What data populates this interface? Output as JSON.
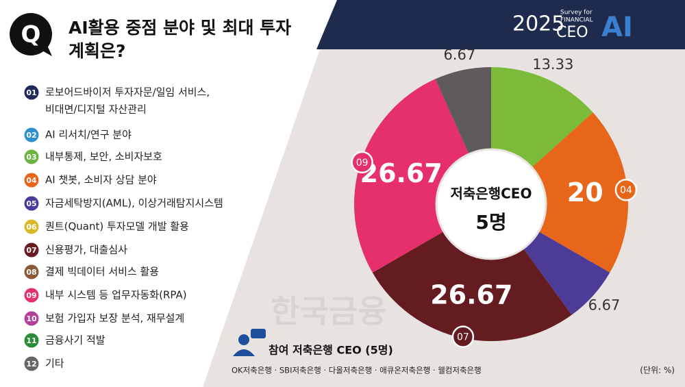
{
  "header": {
    "q_icon": "Q",
    "title": [
      "AI활용 중점 분야 및 최대 투자",
      "계획은?"
    ]
  },
  "logo": {
    "year": "2025",
    "survey": "Survey for",
    "financial": "FINANCIAL",
    "ceo": "CEO",
    "ai": "AI"
  },
  "legend": [
    {
      "number": "01",
      "label": [
        "로보어드바이저 투자자문/일임 서비스,",
        "비대면/디지털 자산관리"
      ],
      "color": "#1e2a5a"
    },
    {
      "number": "02",
      "label": [
        "AI 리서치/연구 분야"
      ],
      "color": "#2d8fd0"
    },
    {
      "number": "03",
      "label": [
        "내부통제, 보안, 소비자보호"
      ],
      "color": "#6cb33f"
    },
    {
      "number": "04",
      "label": [
        "AI 챗봇, 소비자 상담 분야"
      ],
      "color": "#e8641b"
    },
    {
      "number": "05",
      "label": [
        "자금세탁방지(AML), 이상거래탐지시스템"
      ],
      "color": "#4a3a9a"
    },
    {
      "number": "06",
      "label": [
        "퀀트(Quant) 투자모델 개발 활용"
      ],
      "color": "#d8b92a"
    },
    {
      "number": "07",
      "label": [
        "신용평가, 대출심사"
      ],
      "color": "#6a1c22"
    },
    {
      "number": "08",
      "label": [
        "결제 빅데이터 서비스 활용"
      ],
      "color": "#8a5a3a"
    },
    {
      "number": "09",
      "label": [
        "내부 시스템 등 업무자동화(RPA)"
      ],
      "color": "#e6306a"
    },
    {
      "number": "10",
      "label": [
        "보험 가입자 보장 분석, 재무설계"
      ],
      "color": "#b0409a"
    },
    {
      "number": "11",
      "label": [
        "금융사기 적발"
      ],
      "color": "#2a8a3a"
    },
    {
      "number": "12",
      "label": [
        "기타"
      ],
      "color": "#666666"
    }
  ],
  "chart_data": {
    "type": "pie",
    "center_label": [
      "저축은행CEO",
      "5명"
    ],
    "categories": [
      null,
      "04",
      null,
      "07",
      "09",
      null
    ],
    "values": [
      13.33,
      20,
      6.67,
      26.67,
      26.67,
      6.67
    ],
    "colors": [
      "#7cbb3a",
      "#e8661a",
      "#4c3c98",
      "#651c20",
      "#e5306b",
      "#5f5a5b"
    ],
    "unit": "(단위: %)"
  },
  "participants": {
    "title": "참여 저축은행 CEO (5명)",
    "list": "OK저축은행 · SBI저축은행 · 다올저축은행 · 애큐온저축은행 · 웰컴저축은행"
  },
  "watermark": "한국금융"
}
